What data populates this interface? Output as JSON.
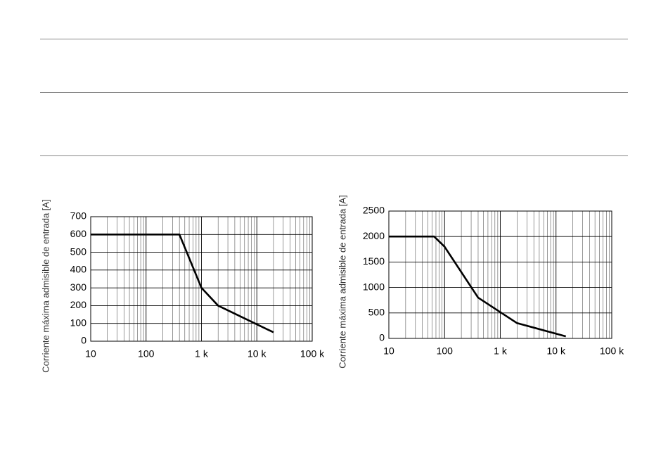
{
  "chart_data": [
    {
      "type": "line",
      "y_label": "Corriente máxima admisible de entrada [A]",
      "log_x": true,
      "grid": true,
      "minor_grid": true,
      "color": "#000000",
      "x": [
        10,
        400,
        1000,
        2000,
        20000
      ],
      "values": [
        600,
        600,
        300,
        200,
        50
      ],
      "xlim": [
        10,
        100000
      ],
      "xticks": [
        10,
        100,
        {
          "value": 1000,
          "label": "1 k"
        },
        {
          "value": 10000,
          "label": "10 k"
        },
        {
          "value": 100000,
          "label": "100 k"
        }
      ],
      "ylim": [
        0,
        700
      ],
      "yticks": [
        0,
        100,
        200,
        300,
        400,
        500,
        600,
        700
      ]
    },
    {
      "type": "line",
      "y_label": "Corriente máxima admisible de entrada [A]",
      "log_x": true,
      "grid": true,
      "minor_grid": true,
      "color": "#000000",
      "x": [
        10,
        65,
        100,
        400,
        2000,
        15000
      ],
      "values": [
        2000,
        2000,
        1800,
        800,
        300,
        40
      ],
      "xlim": [
        10,
        100000
      ],
      "xticks": [
        10,
        100,
        {
          "value": 1000,
          "label": "1 k"
        },
        {
          "value": 10000,
          "label": "10 k"
        },
        {
          "value": 100000,
          "label": "100 k"
        }
      ],
      "ylim": [
        0,
        2500
      ],
      "yticks": [
        0,
        500,
        1000,
        1500,
        2000,
        2500
      ]
    }
  ]
}
